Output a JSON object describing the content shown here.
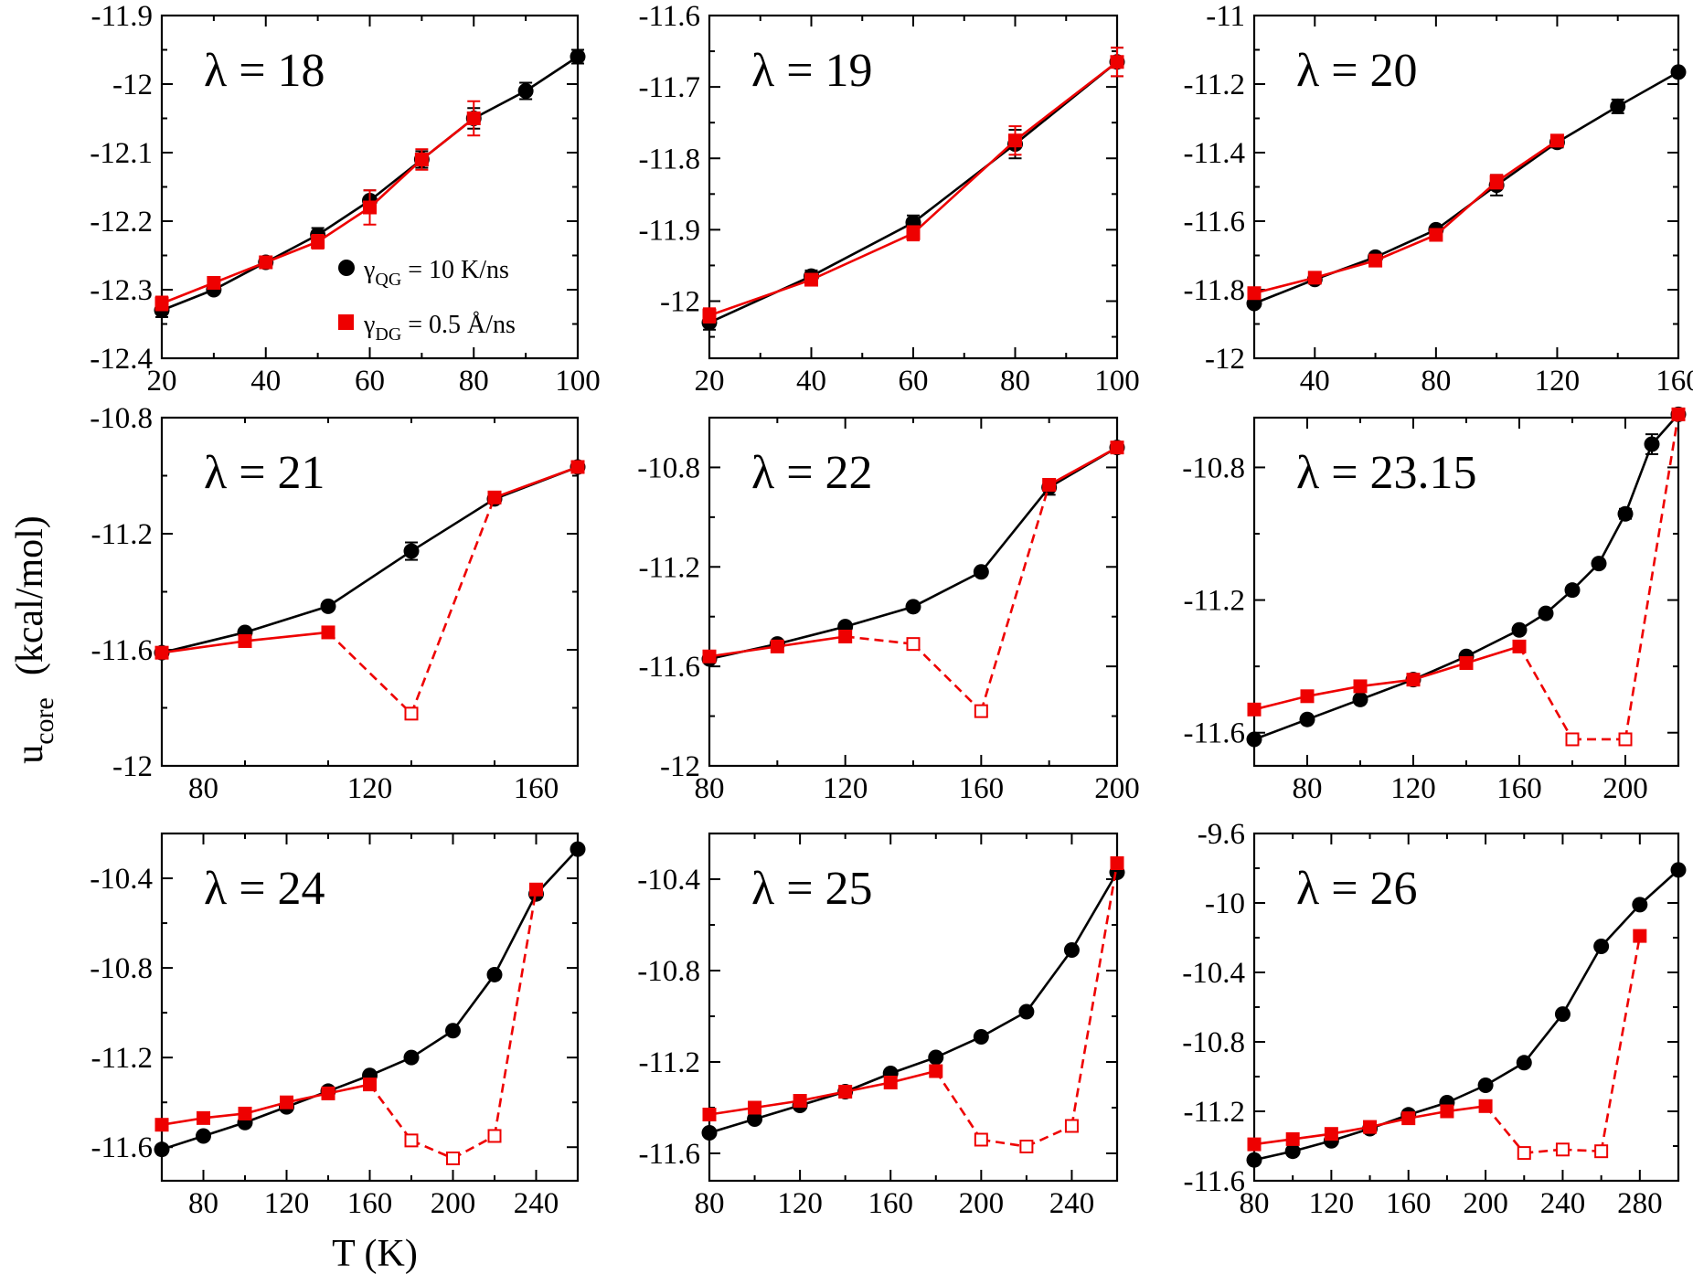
{
  "figure": {
    "xlabel": "T (K)",
    "ylabel_main": "u",
    "ylabel_sub": "core",
    "ylabel_units": "(kcal/mol)"
  },
  "legend": {
    "qg_symbol": "γ",
    "qg_sub": "QG",
    "qg_text": " = 10 K/ns",
    "dg_symbol": "γ",
    "dg_sub": "DG",
    "dg_text": " = 0.5 Å/ns"
  },
  "colors": {
    "qg": "#000000",
    "dg": "#ee0000"
  },
  "chart_data": [
    {
      "type": "line",
      "title": "λ = 18",
      "xlim": [
        20,
        100
      ],
      "ylim": [
        -12.4,
        -11.9
      ],
      "xticks": [
        20,
        40,
        60,
        80,
        100
      ],
      "xtick_labels": [
        "20",
        "40",
        "60",
        "80",
        "100"
      ],
      "yticks": [
        -12.4,
        -12.3,
        -12.2,
        -12.1,
        -12,
        -11.9
      ],
      "ytick_labels": [
        "-12.4",
        "-12.3",
        "-12.2",
        "-12.1",
        "-12",
        "-11.9"
      ],
      "series": [
        {
          "name": "γQG = 10 K/ns",
          "x": [
            20,
            30,
            40,
            50,
            60,
            70,
            80,
            90,
            100
          ],
          "y": [
            -12.33,
            -12.3,
            -12.26,
            -12.22,
            -12.17,
            -12.11,
            -12.05,
            -12.01,
            -11.96
          ],
          "err": [
            0.01,
            0.005,
            0.008,
            0.01,
            0.015,
            0.012,
            0.015,
            0.012,
            0.01
          ]
        },
        {
          "name": "γDG = 0.5 Å/ns",
          "x": [
            20,
            30,
            40,
            50,
            60,
            70,
            80
          ],
          "y": [
            -12.32,
            -12.29,
            -12.26,
            -12.23,
            -12.18,
            -12.11,
            -12.05
          ],
          "err": [
            0.01,
            0.005,
            0.008,
            0.01,
            0.025,
            0.015,
            0.025
          ]
        }
      ]
    },
    {
      "type": "line",
      "title": "λ = 19",
      "xlim": [
        20,
        100
      ],
      "ylim": [
        -12.08,
        -11.6
      ],
      "xticks": [
        20,
        40,
        60,
        80,
        100
      ],
      "xtick_labels": [
        "20",
        "40",
        "60",
        "80",
        "100"
      ],
      "yticks": [
        -12,
        -11.9,
        -11.8,
        -11.7,
        -11.6
      ],
      "ytick_labels": [
        "-12",
        "-11.9",
        "-11.8",
        "-11.7",
        "-11.6"
      ],
      "series": [
        {
          "name": "γQG = 10 K/ns",
          "x": [
            20,
            40,
            60,
            80,
            100
          ],
          "y": [
            -12.03,
            -11.965,
            -11.89,
            -11.78,
            -11.665
          ],
          "err": [
            0.01,
            0.008,
            0.01,
            0.02,
            0.02
          ]
        },
        {
          "name": "γDG = 0.5 Å/ns",
          "x": [
            20,
            40,
            60,
            80,
            100
          ],
          "y": [
            -12.02,
            -11.97,
            -11.905,
            -11.775,
            -11.665
          ],
          "err": [
            0.01,
            0.008,
            0.01,
            0.02,
            0.02
          ]
        }
      ]
    },
    {
      "type": "line",
      "title": "λ = 20",
      "xlim": [
        20,
        160
      ],
      "ylim": [
        -12,
        -11
      ],
      "xticks": [
        40,
        80,
        120,
        160
      ],
      "xtick_labels": [
        "40",
        "80",
        "120",
        "160"
      ],
      "yticks": [
        -12,
        -11.8,
        -11.6,
        -11.4,
        -11.2,
        -11
      ],
      "ytick_labels": [
        "-12",
        "-11.8",
        "-11.6",
        "-11.4",
        "-11.2",
        "-11"
      ],
      "series": [
        {
          "name": "γQG = 10 K/ns",
          "x": [
            20,
            40,
            60,
            80,
            100,
            120,
            140,
            160
          ],
          "y": [
            -11.84,
            -11.77,
            -11.705,
            -11.625,
            -11.495,
            -11.37,
            -11.265,
            -11.165
          ],
          "err": [
            0.01,
            0.01,
            0.01,
            0.01,
            0.03,
            0.015,
            0.02,
            0.01
          ]
        },
        {
          "name": "γDG = 0.5 Å/ns",
          "x": [
            20,
            40,
            60,
            80,
            100,
            120
          ],
          "y": [
            -11.81,
            -11.765,
            -11.715,
            -11.64,
            -11.485,
            -11.365
          ],
          "err": [
            0.01,
            0.01,
            0.01,
            0.01,
            0.02,
            0.015
          ]
        }
      ]
    },
    {
      "type": "line",
      "title": "λ = 21",
      "xlim": [
        70,
        170
      ],
      "ylim": [
        -12,
        -10.8
      ],
      "xticks": [
        80,
        120,
        160
      ],
      "xtick_labels": [
        "80",
        "120",
        "160"
      ],
      "yticks": [
        -12,
        -11.6,
        -11.2,
        -10.8
      ],
      "ytick_labels": [
        "-12",
        "-11.6",
        "-11.2",
        "-10.8"
      ],
      "series": [
        {
          "name": "γQG = 10 K/ns",
          "x": [
            70,
            90,
            110,
            130,
            150,
            170
          ],
          "y": [
            -11.61,
            -11.54,
            -11.45,
            -11.26,
            -11.08,
            -10.97
          ],
          "err": [
            0.01,
            0.01,
            0.01,
            0.03,
            0.015,
            0.01
          ]
        },
        {
          "name": "γDG = 0.5 Å/ns",
          "x": [
            70,
            90,
            110,
            130,
            150,
            170
          ],
          "y": [
            -11.61,
            -11.57,
            -11.54,
            -11.82,
            -11.075,
            -10.97
          ],
          "open": [
            false,
            false,
            false,
            true,
            false,
            false
          ],
          "err": [
            0,
            0,
            0,
            0,
            0,
            0
          ]
        }
      ]
    },
    {
      "type": "line",
      "title": "λ = 22",
      "xlim": [
        80,
        200
      ],
      "ylim": [
        -12,
        -10.6
      ],
      "xticks": [
        80,
        120,
        160,
        200
      ],
      "xtick_labels": [
        "80",
        "120",
        "160",
        "200"
      ],
      "yticks": [
        -12,
        -11.6,
        -11.2,
        -10.8
      ],
      "ytick_labels": [
        "-12",
        "-11.6",
        "-11.2",
        "-10.8"
      ],
      "series": [
        {
          "name": "γQG = 10 K/ns",
          "x": [
            80,
            100,
            120,
            140,
            160,
            180,
            200
          ],
          "y": [
            -11.57,
            -11.51,
            -11.44,
            -11.36,
            -11.22,
            -10.88,
            -10.72
          ],
          "err": [
            0.01,
            0.01,
            0.01,
            0.01,
            0.01,
            0.03,
            0.01
          ]
        },
        {
          "name": "γDG = 0.5 Å/ns",
          "x": [
            80,
            100,
            120,
            140,
            160,
            180,
            200
          ],
          "y": [
            -11.56,
            -11.52,
            -11.48,
            -11.51,
            -11.78,
            -10.87,
            -10.72
          ],
          "open": [
            false,
            false,
            false,
            true,
            true,
            false,
            false
          ],
          "err": [
            0,
            0,
            0,
            0,
            0,
            0.02,
            0
          ]
        }
      ]
    },
    {
      "type": "line",
      "title": "λ = 23.15",
      "xlim": [
        60,
        220
      ],
      "ylim": [
        -11.7,
        -10.65
      ],
      "xticks": [
        80,
        120,
        160,
        200
      ],
      "xtick_labels": [
        "80",
        "120",
        "160",
        "200"
      ],
      "yticks": [
        -11.6,
        -11.2,
        -10.8
      ],
      "ytick_labels": [
        "-11.6",
        "-11.2",
        "-10.8"
      ],
      "series": [
        {
          "name": "γQG = 10 K/ns",
          "x": [
            60,
            80,
            100,
            120,
            140,
            160,
            170,
            180,
            190,
            200,
            210,
            220
          ],
          "y": [
            -11.62,
            -11.56,
            -11.5,
            -11.44,
            -11.37,
            -11.29,
            -11.24,
            -11.17,
            -11.09,
            -10.94,
            -10.73,
            -10.64
          ],
          "err": [
            0.01,
            0.01,
            0.01,
            0.01,
            0.01,
            0.01,
            0.01,
            0.01,
            0.01,
            0.015,
            0.03,
            0.01
          ]
        },
        {
          "name": "γDG = 0.5 Å/ns",
          "x": [
            60,
            80,
            100,
            120,
            140,
            160,
            180,
            200,
            220
          ],
          "y": [
            -11.53,
            -11.49,
            -11.46,
            -11.44,
            -11.39,
            -11.34,
            -11.62,
            -11.62,
            -10.64
          ],
          "open": [
            false,
            false,
            false,
            false,
            false,
            false,
            true,
            true,
            false
          ],
          "err": [
            0,
            0,
            0,
            0,
            0,
            0,
            0,
            0,
            0
          ]
        }
      ]
    },
    {
      "type": "line",
      "title": "λ = 24",
      "xlim": [
        60,
        260
      ],
      "ylim": [
        -11.75,
        -10.2
      ],
      "xticks": [
        80,
        120,
        160,
        200,
        240
      ],
      "xtick_labels": [
        "80",
        "120",
        "160",
        "200",
        "240"
      ],
      "yticks": [
        -11.6,
        -11.2,
        -10.8,
        -10.4
      ],
      "ytick_labels": [
        "-11.6",
        "-11.2",
        "-10.8",
        "-10.4"
      ],
      "series": [
        {
          "name": "γQG = 10 K/ns",
          "x": [
            60,
            80,
            100,
            120,
            140,
            160,
            180,
            200,
            220,
            240,
            260
          ],
          "y": [
            -11.61,
            -11.55,
            -11.49,
            -11.42,
            -11.35,
            -11.28,
            -11.2,
            -11.08,
            -10.83,
            -10.47,
            -10.27
          ],
          "err": [
            0,
            0,
            0,
            0,
            0,
            0,
            0,
            0,
            0,
            0,
            0
          ]
        },
        {
          "name": "γDG = 0.5 Å/ns",
          "x": [
            60,
            80,
            100,
            120,
            140,
            160,
            180,
            200,
            220,
            240
          ],
          "y": [
            -11.5,
            -11.47,
            -11.45,
            -11.4,
            -11.36,
            -11.32,
            -11.57,
            -11.65,
            -11.55,
            -10.45
          ],
          "open": [
            false,
            false,
            false,
            false,
            false,
            false,
            true,
            true,
            true,
            false
          ],
          "err": [
            0,
            0,
            0,
            0,
            0,
            0,
            0,
            0,
            0,
            0
          ]
        }
      ]
    },
    {
      "type": "line",
      "title": "λ = 25",
      "xlim": [
        80,
        260
      ],
      "ylim": [
        -11.72,
        -10.2
      ],
      "xticks": [
        80,
        120,
        160,
        200,
        240
      ],
      "xtick_labels": [
        "80",
        "120",
        "160",
        "200",
        "240"
      ],
      "yticks": [
        -11.6,
        -11.2,
        -10.8,
        -10.4
      ],
      "ytick_labels": [
        "-11.6",
        "-11.2",
        "-10.8",
        "-10.4"
      ],
      "series": [
        {
          "name": "γQG = 10 K/ns",
          "x": [
            80,
            100,
            120,
            140,
            160,
            180,
            200,
            220,
            240,
            260
          ],
          "y": [
            -11.51,
            -11.45,
            -11.39,
            -11.33,
            -11.25,
            -11.18,
            -11.09,
            -10.98,
            -10.71,
            -10.37
          ],
          "err": [
            0,
            0,
            0,
            0,
            0,
            0,
            0,
            0,
            0,
            0
          ]
        },
        {
          "name": "γDG = 0.5 Å/ns",
          "x": [
            80,
            100,
            120,
            140,
            160,
            180,
            200,
            220,
            240,
            260
          ],
          "y": [
            -11.43,
            -11.4,
            -11.37,
            -11.33,
            -11.29,
            -11.24,
            -11.54,
            -11.57,
            -11.48,
            -10.33
          ],
          "open": [
            false,
            false,
            false,
            false,
            false,
            false,
            true,
            true,
            true,
            false
          ],
          "err": [
            0,
            0,
            0,
            0,
            0,
            0,
            0,
            0,
            0,
            0
          ]
        }
      ]
    },
    {
      "type": "line",
      "title": "λ = 26",
      "xlim": [
        80,
        300
      ],
      "ylim": [
        -11.6,
        -9.6
      ],
      "xticks": [
        80,
        120,
        160,
        200,
        240,
        280
      ],
      "xtick_labels": [
        "80",
        "120",
        "160",
        "200",
        "240",
        "280"
      ],
      "yticks": [
        -11.6,
        -11.2,
        -10.8,
        -10.4,
        -10,
        -9.6
      ],
      "ytick_labels": [
        "-11.6",
        "-11.2",
        "-10.8",
        "-10.4",
        "-10",
        "-9.6"
      ],
      "series": [
        {
          "name": "γQG = 10 K/ns",
          "x": [
            80,
            100,
            120,
            140,
            160,
            180,
            200,
            220,
            240,
            260,
            280,
            300
          ],
          "y": [
            -11.48,
            -11.43,
            -11.37,
            -11.3,
            -11.22,
            -11.15,
            -11.05,
            -10.92,
            -10.64,
            -10.25,
            -10.01,
            -9.81
          ],
          "err": [
            0,
            0,
            0,
            0,
            0,
            0,
            0,
            0,
            0,
            0,
            0,
            0
          ]
        },
        {
          "name": "γDG = 0.5 Å/ns",
          "x": [
            80,
            100,
            120,
            140,
            160,
            180,
            200,
            220,
            240,
            260,
            280
          ],
          "y": [
            -11.39,
            -11.36,
            -11.33,
            -11.29,
            -11.24,
            -11.2,
            -11.17,
            -11.44,
            -11.42,
            -11.43,
            -10.19
          ],
          "open": [
            false,
            false,
            false,
            false,
            false,
            false,
            false,
            true,
            true,
            true,
            false
          ],
          "err": [
            0,
            0,
            0,
            0,
            0,
            0,
            0,
            0,
            0,
            0,
            0
          ]
        }
      ]
    }
  ]
}
